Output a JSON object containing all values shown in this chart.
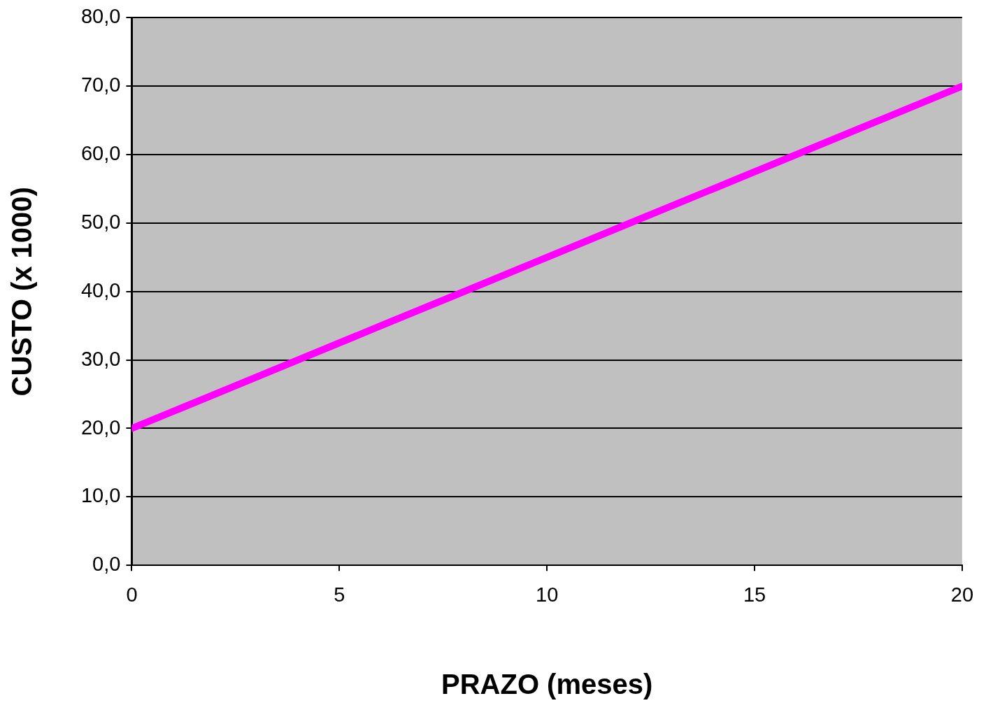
{
  "chart_data": {
    "type": "line",
    "xlabel": "PRAZO (meses)",
    "ylabel": "CUSTO (x 1000)",
    "x": [
      0,
      2,
      4,
      6,
      8,
      10,
      12,
      14,
      16,
      18,
      20
    ],
    "series": [
      {
        "color": "#ff00ff",
        "values": [
          20,
          25,
          30,
          35,
          40,
          45,
          50,
          55,
          60,
          65,
          70
        ]
      }
    ],
    "xlim": [
      0,
      20
    ],
    "xticks": [
      0,
      5,
      10,
      15,
      20
    ],
    "ylim": [
      0,
      80
    ],
    "yticks": [
      {
        "value": 0,
        "label": "0,0"
      },
      {
        "value": 10,
        "label": "10,0"
      },
      {
        "value": 20,
        "label": "20,0"
      },
      {
        "value": 30,
        "label": "30,0"
      },
      {
        "value": 40,
        "label": "40,0"
      },
      {
        "value": 50,
        "label": "50,0"
      },
      {
        "value": 60,
        "label": "60,0"
      },
      {
        "value": 70,
        "label": "70,0"
      },
      {
        "value": 80,
        "label": "80,0"
      }
    ],
    "grid": "y",
    "legend": false,
    "marker": "none",
    "line_style": "solid"
  }
}
